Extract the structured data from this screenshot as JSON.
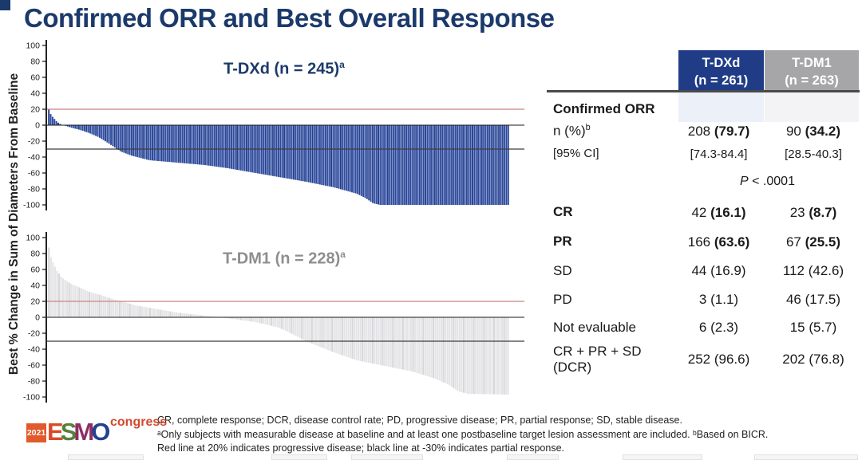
{
  "slide": {
    "title": "Confirmed ORR and Best Overall Response"
  },
  "colors": {
    "title_navy": "#1b3a6b",
    "bar_blue": "#2d4a9d",
    "bar_blue_alt": "#243f92",
    "bar_gray": "#e4e4e6",
    "bar_gray_alt": "#d7d7db",
    "header_blue": "#213c87",
    "header_gray": "#a6a6a8",
    "red_line": "#c98383",
    "black_line": "#3c3c3c",
    "axis_color": "#222222",
    "label_gray": "#8e8e90"
  },
  "axis_label": "Best % Change in Sum of Diameters From Baseline",
  "chart_data": [
    {
      "type": "bar",
      "subtype": "waterfall",
      "title": "T-DXd (n = 245)",
      "title_sup": "a",
      "n_patients": 245,
      "ylabel": "Best % Change in Sum of Diameters From Baseline",
      "ylim": [
        -100,
        100
      ],
      "yticks": [
        100,
        80,
        60,
        40,
        20,
        0,
        -20,
        -40,
        -60,
        -80,
        -100
      ],
      "ref_lines": [
        {
          "y": 20,
          "color": "#c98383",
          "meaning": "progressive disease threshold"
        },
        {
          "y": -30,
          "color": "#3c3c3c",
          "meaning": "partial response threshold"
        }
      ],
      "bar_color": "#2d4a9d",
      "bar_color_alt": "#243f92",
      "title_color": "#1b3a6b",
      "envelope_frac_value": [
        [
          0,
          24
        ],
        [
          0.004,
          16
        ],
        [
          0.008,
          12
        ],
        [
          0.014,
          8
        ],
        [
          0.02,
          4
        ],
        [
          0.028,
          1
        ],
        [
          0.034,
          0
        ],
        [
          0.05,
          -3
        ],
        [
          0.07,
          -6
        ],
        [
          0.09,
          -10
        ],
        [
          0.11,
          -15
        ],
        [
          0.124,
          -20
        ],
        [
          0.14,
          -26
        ],
        [
          0.158,
          -33
        ],
        [
          0.18,
          -38
        ],
        [
          0.22,
          -44
        ],
        [
          0.28,
          -47
        ],
        [
          0.34,
          -50
        ],
        [
          0.39,
          -54
        ],
        [
          0.45,
          -60
        ],
        [
          0.51,
          -66
        ],
        [
          0.56,
          -71
        ],
        [
          0.62,
          -78
        ],
        [
          0.67,
          -86
        ],
        [
          0.69,
          -92
        ],
        [
          0.705,
          -98
        ],
        [
          0.72,
          -100
        ],
        [
          1,
          -100
        ]
      ]
    },
    {
      "type": "bar",
      "subtype": "waterfall",
      "title": "T-DM1 (n = 228)",
      "title_sup": "a",
      "n_patients": 228,
      "ylabel": "Best % Change in Sum of Diameters From Baseline",
      "ylim": [
        -100,
        100
      ],
      "yticks": [
        100,
        80,
        60,
        40,
        20,
        0,
        -20,
        -40,
        -60,
        -80,
        -100
      ],
      "ref_lines": [
        {
          "y": 20,
          "color": "#c98383",
          "meaning": "progressive disease threshold"
        },
        {
          "y": -30,
          "color": "#3c3c3c",
          "meaning": "partial response threshold"
        }
      ],
      "bar_color": "#e4e4e6",
      "bar_color_alt": "#d7d7db",
      "title_color": "#8e8e90",
      "envelope_frac_value": [
        [
          0,
          95
        ],
        [
          0.005,
          78
        ],
        [
          0.01,
          70
        ],
        [
          0.02,
          58
        ],
        [
          0.03,
          50
        ],
        [
          0.05,
          42
        ],
        [
          0.07,
          37
        ],
        [
          0.09,
          32
        ],
        [
          0.12,
          27
        ],
        [
          0.14,
          23
        ],
        [
          0.16,
          20
        ],
        [
          0.19,
          15
        ],
        [
          0.23,
          11
        ],
        [
          0.28,
          6
        ],
        [
          0.31,
          4
        ],
        [
          0.34,
          2
        ],
        [
          0.37,
          0
        ],
        [
          0.4,
          -2
        ],
        [
          0.45,
          -6
        ],
        [
          0.48,
          -10
        ],
        [
          0.5,
          -13
        ],
        [
          0.52,
          -18
        ],
        [
          0.56,
          -30
        ],
        [
          0.62,
          -44
        ],
        [
          0.67,
          -54
        ],
        [
          0.73,
          -61
        ],
        [
          0.79,
          -68
        ],
        [
          0.84,
          -77
        ],
        [
          0.87,
          -85
        ],
        [
          0.89,
          -93
        ],
        [
          0.91,
          -96
        ],
        [
          1,
          -97
        ]
      ]
    }
  ],
  "table": {
    "columns": [
      {
        "label": "T-DXd",
        "sub": "(n = 261)",
        "header_color": "#213c87"
      },
      {
        "label": "T-DM1",
        "sub": "(n = 263)",
        "header_color": "#a6a6a8"
      }
    ],
    "p_value": {
      "italic": "P",
      "rest": " < .0001"
    },
    "rows": [
      {
        "label": "Confirmed ORR",
        "label_bold": true,
        "cells": null
      },
      {
        "label": "n (%)",
        "label_sup": "b",
        "cells": [
          {
            "n": "208",
            "pct": "(79.7)",
            "pct_bold": true
          },
          {
            "n": "90",
            "pct": "(34.2)",
            "pct_bold": true
          }
        ]
      },
      {
        "label": "[95% CI]",
        "cells": [
          {
            "n": "[74.3-84.4]"
          },
          {
            "n": "[28.5-40.3]"
          }
        ]
      },
      {
        "type": "pvalue"
      },
      {
        "label": "CR",
        "label_bold": true,
        "cells": [
          {
            "n": "42",
            "pct": "(16.1)",
            "pct_bold": true
          },
          {
            "n": "23",
            "pct": "(8.7)",
            "pct_bold": true
          }
        ]
      },
      {
        "label": "PR",
        "label_bold": true,
        "cells": [
          {
            "n": "166",
            "pct": "(63.6)",
            "pct_bold": true
          },
          {
            "n": "67",
            "pct": "(25.5)",
            "pct_bold": true
          }
        ]
      },
      {
        "label": "SD",
        "cells": [
          {
            "n": "44",
            "pct": "(16.9)"
          },
          {
            "n": "112",
            "pct": "(42.6)"
          }
        ]
      },
      {
        "label": "PD",
        "cells": [
          {
            "n": "3",
            "pct": "(1.1)"
          },
          {
            "n": "46",
            "pct": "(17.5)"
          }
        ]
      },
      {
        "label": "Not evaluable",
        "cells": [
          {
            "n": "6",
            "pct": "(2.3)"
          },
          {
            "n": "15",
            "pct": "(5.7)"
          }
        ]
      },
      {
        "label_lines": [
          "CR + PR + SD",
          "(DCR)"
        ],
        "cells": [
          {
            "n": "252",
            "pct": "(96.6)"
          },
          {
            "n": "202",
            "pct": "(76.8)"
          }
        ]
      }
    ]
  },
  "footnotes": {
    "lines": [
      "CR, complete response; DCR, disease control rate; PD, progressive disease; PR, partial response; SD, stable disease.",
      "ᵃOnly subjects with measurable disease at baseline and at least one postbaseline target lesion assessment are included. ᵇBased on BICR.",
      "Red line at 20% indicates progressive disease; black line at -30% indicates partial response."
    ]
  },
  "logo": {
    "year": "2021",
    "letters": [
      {
        "ch": "E",
        "color": "#d84a28"
      },
      {
        "ch": "S",
        "color": "#55813a"
      },
      {
        "ch": "M",
        "color": "#8e2d63"
      },
      {
        "ch": "O",
        "color": "#24418e"
      }
    ],
    "congress": "congress"
  }
}
